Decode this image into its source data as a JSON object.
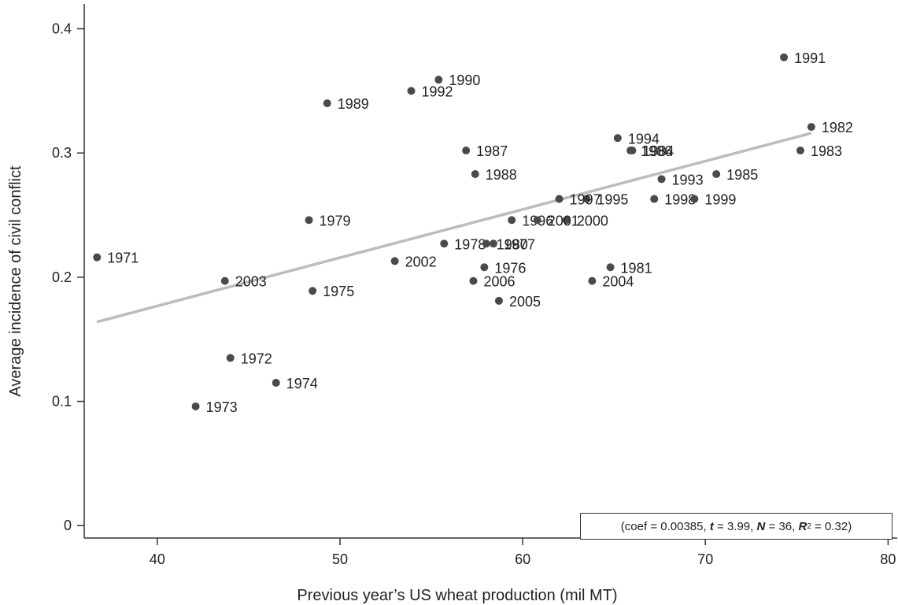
{
  "chart_data": {
    "type": "scatter",
    "title": "",
    "xlabel": "Previous year’s US wheat production (mil MT)",
    "ylabel": "Average incidence of civil conflict",
    "xlim": [
      36,
      80.5
    ],
    "ylim": [
      -0.01,
      0.42
    ],
    "xticks": [
      40,
      50,
      60,
      70,
      80
    ],
    "yticks": [
      0,
      0.1,
      0.2,
      0.3,
      0.4
    ],
    "ytick_labels": [
      "0",
      "0.1",
      "0.2",
      "0.3",
      "0.4"
    ],
    "grid": false,
    "legend": "none",
    "point_color": "#4a4a4a",
    "fit_line_color": "#bcbcbc",
    "fit_line": {
      "x": [
        36.7,
        75.8
      ],
      "y": [
        0.164,
        0.316
      ]
    },
    "points": [
      {
        "label": "1971",
        "x": 36.7,
        "y": 0.216
      },
      {
        "label": "1972",
        "x": 44.0,
        "y": 0.135
      },
      {
        "label": "1973",
        "x": 42.1,
        "y": 0.096
      },
      {
        "label": "1974",
        "x": 46.5,
        "y": 0.115
      },
      {
        "label": "1975",
        "x": 48.5,
        "y": 0.189
      },
      {
        "label": "1976",
        "x": 57.9,
        "y": 0.208
      },
      {
        "label": "1977",
        "x": 58.4,
        "y": 0.227
      },
      {
        "label": "1978",
        "x": 55.7,
        "y": 0.227
      },
      {
        "label": "1979",
        "x": 48.3,
        "y": 0.246
      },
      {
        "label": "1980",
        "x": 58.0,
        "y": 0.227
      },
      {
        "label": "1981",
        "x": 64.8,
        "y": 0.208
      },
      {
        "label": "1982",
        "x": 75.8,
        "y": 0.321
      },
      {
        "label": "1983",
        "x": 75.2,
        "y": 0.302
      },
      {
        "label": "1984",
        "x": 66.0,
        "y": 0.302
      },
      {
        "label": "1985",
        "x": 70.6,
        "y": 0.283
      },
      {
        "label": "1986",
        "x": 65.9,
        "y": 0.302
      },
      {
        "label": "1987",
        "x": 56.9,
        "y": 0.302
      },
      {
        "label": "1988",
        "x": 57.4,
        "y": 0.283
      },
      {
        "label": "1989",
        "x": 49.3,
        "y": 0.34
      },
      {
        "label": "1990",
        "x": 55.4,
        "y": 0.359
      },
      {
        "label": "1991",
        "x": 74.3,
        "y": 0.377
      },
      {
        "label": "1992",
        "x": 53.9,
        "y": 0.35
      },
      {
        "label": "1993",
        "x": 67.6,
        "y": 0.279
      },
      {
        "label": "1994",
        "x": 65.2,
        "y": 0.312
      },
      {
        "label": "1995",
        "x": 63.5,
        "y": 0.263
      },
      {
        "label": "1996",
        "x": 59.4,
        "y": 0.246
      },
      {
        "label": "1997",
        "x": 62.0,
        "y": 0.263
      },
      {
        "label": "1998",
        "x": 67.2,
        "y": 0.263
      },
      {
        "label": "1999",
        "x": 69.4,
        "y": 0.263
      },
      {
        "label": "2000",
        "x": 62.4,
        "y": 0.246
      },
      {
        "label": "2001",
        "x": 60.8,
        "y": 0.246
      },
      {
        "label": "2002",
        "x": 53.0,
        "y": 0.213
      },
      {
        "label": "2003",
        "x": 43.7,
        "y": 0.197
      },
      {
        "label": "2004",
        "x": 63.8,
        "y": 0.197
      },
      {
        "label": "2005",
        "x": 58.7,
        "y": 0.181
      },
      {
        "label": "2006",
        "x": 57.3,
        "y": 0.197
      }
    ],
    "annotation": {
      "coef_label": "coef",
      "coef": "0.00385",
      "t_label": "t",
      "t": "3.99",
      "n_label": "N",
      "n": "36",
      "r2_label": "R",
      "r2": "0.32"
    }
  }
}
